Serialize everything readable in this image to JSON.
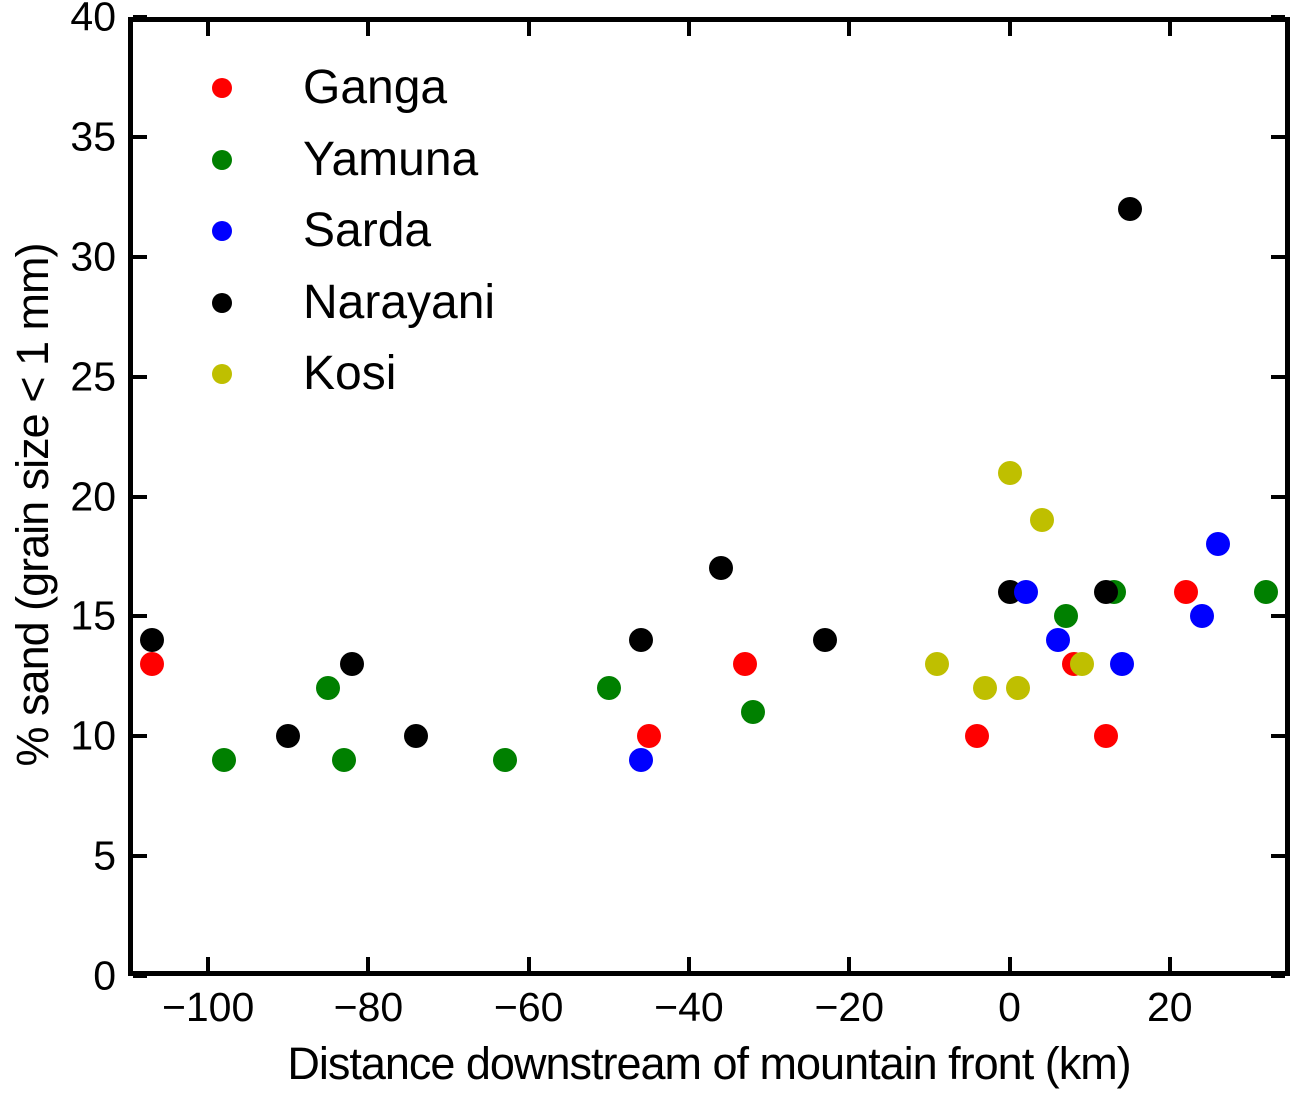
{
  "chart_data": {
    "type": "scatter",
    "title": "",
    "xlabel": "Distance downstream of mountain front (km)",
    "ylabel": "% sand (grain size < 1 mm)",
    "xlim": [
      -110,
      35
    ],
    "ylim": [
      0,
      40
    ],
    "grid": false,
    "legend_position": "upper-left-inside",
    "x_ticks": [
      {
        "value": -100,
        "label": "−100"
      },
      {
        "value": -80,
        "label": "−80"
      },
      {
        "value": -60,
        "label": "−60"
      },
      {
        "value": -40,
        "label": "−40"
      },
      {
        "value": -20,
        "label": "−20"
      },
      {
        "value": 0,
        "label": "0"
      },
      {
        "value": 20,
        "label": "20"
      }
    ],
    "y_ticks": [
      {
        "value": 0,
        "label": "0"
      },
      {
        "value": 5,
        "label": "5"
      },
      {
        "value": 10,
        "label": "10"
      },
      {
        "value": 15,
        "label": "15"
      },
      {
        "value": 20,
        "label": "20"
      },
      {
        "value": 25,
        "label": "25"
      },
      {
        "value": 30,
        "label": "30"
      },
      {
        "value": 35,
        "label": "35"
      },
      {
        "value": 40,
        "label": "40"
      }
    ],
    "series": [
      {
        "name": "Ganga",
        "color": "#ff0000",
        "points": [
          [
            -107,
            13
          ],
          [
            -45,
            10
          ],
          [
            -33,
            13
          ],
          [
            -4,
            10
          ],
          [
            8,
            13
          ],
          [
            12,
            10
          ],
          [
            22,
            16
          ]
        ]
      },
      {
        "name": "Yamuna",
        "color": "#008000",
        "points": [
          [
            -98,
            9
          ],
          [
            -85,
            12
          ],
          [
            -83,
            9
          ],
          [
            -63,
            9
          ],
          [
            -50,
            12
          ],
          [
            -32,
            11
          ],
          [
            7,
            15
          ],
          [
            13,
            16
          ],
          [
            32,
            16
          ]
        ]
      },
      {
        "name": "Sarda",
        "color": "#0000ff",
        "points": [
          [
            -46,
            9
          ],
          [
            2,
            16
          ],
          [
            6,
            14
          ],
          [
            14,
            13
          ],
          [
            24,
            15
          ],
          [
            26,
            18
          ]
        ]
      },
      {
        "name": "Narayani",
        "color": "#000000",
        "points": [
          [
            -107,
            14
          ],
          [
            -90,
            10
          ],
          [
            -82,
            13
          ],
          [
            -74,
            10
          ],
          [
            -46,
            14
          ],
          [
            -36,
            17
          ],
          [
            -23,
            14
          ],
          [
            0,
            16
          ],
          [
            12,
            16
          ],
          [
            15,
            32
          ]
        ]
      },
      {
        "name": "Kosi",
        "color": "#bfbf00",
        "points": [
          [
            -9,
            13
          ],
          [
            -3,
            12
          ],
          [
            0,
            21
          ],
          [
            1,
            12
          ],
          [
            4,
            19
          ],
          [
            9,
            13
          ]
        ]
      }
    ],
    "draw_order": [
      0,
      1,
      3,
      2,
      4
    ]
  }
}
